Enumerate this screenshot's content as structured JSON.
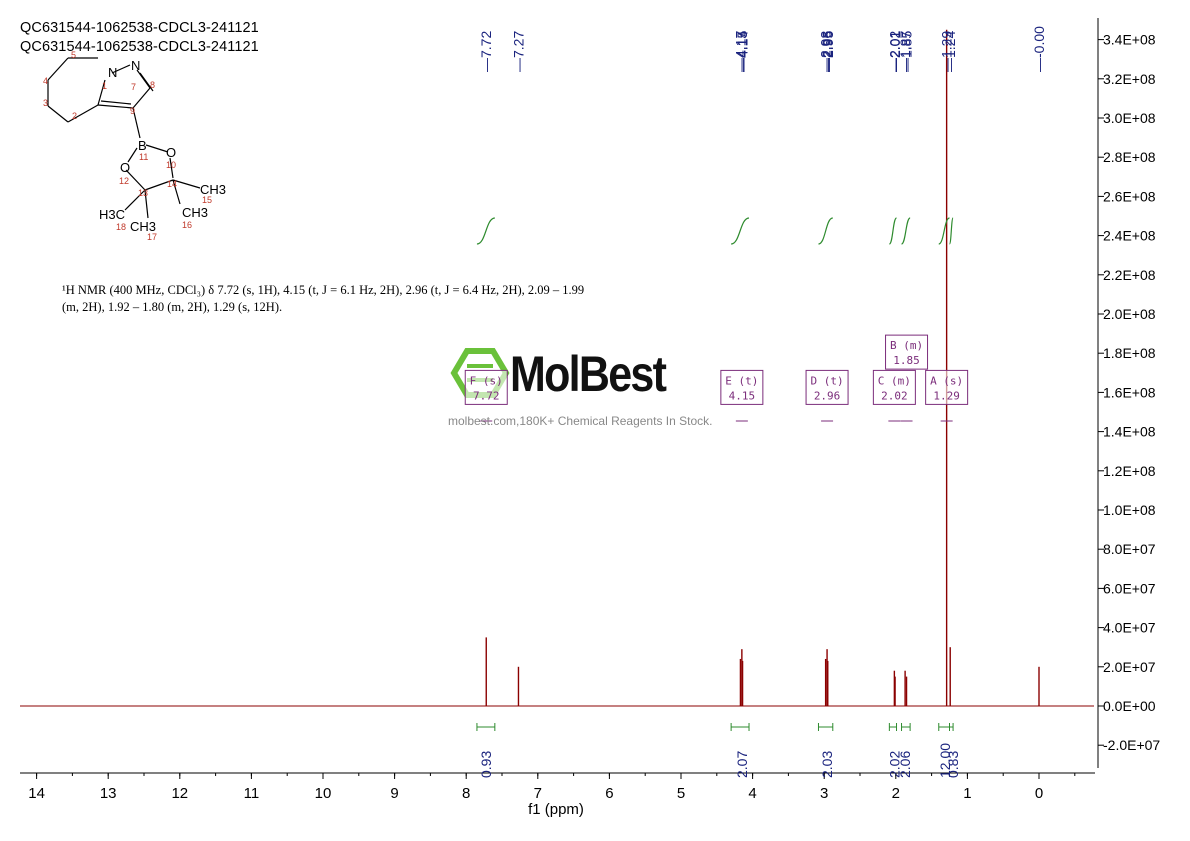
{
  "titles": [
    "QC631544-1062538-CDCL3-241121",
    "QC631544-1062538-CDCL3-241121"
  ],
  "nmr_description": {
    "line1": "¹H NMR (400 MHz, CDCl₃) δ 7.72 (s, 1H), 4.15 (t, J = 6.1 Hz, 2H), 2.96 (t, J = 6.4 Hz, 2H), 2.09 – 1.99",
    "line2": "(m, 2H), 1.92 – 1.80 (m, 2H), 1.29 (s, 12H)."
  },
  "watermark": {
    "logo_text": "MolBest",
    "subtitle": "molbest.com,180K+ Chemical Reagents In Stock."
  },
  "structure": {
    "atoms": [
      "N",
      "N",
      "B",
      "O",
      "O",
      "H3C",
      "CH3",
      "CH3",
      "CH3"
    ],
    "numbers": [
      "1",
      "2",
      "3",
      "4",
      "5",
      "6",
      "7",
      "8",
      "9",
      "10",
      "11",
      "12",
      "13",
      "14",
      "15",
      "16",
      "17",
      "18"
    ]
  },
  "colors": {
    "spectrum": "#8b0000",
    "integral": "#2e8b2e",
    "label_text": "#1a237e",
    "multiplet_box": "#7b2d7b"
  },
  "chart_data": {
    "type": "line",
    "xlabel": "f1 (ppm)",
    "x_ticks": [
      14,
      13,
      12,
      11,
      10,
      9,
      8,
      7,
      6,
      5,
      4,
      3,
      2,
      1,
      0
    ],
    "xlim": [
      14.3,
      -0.75
    ],
    "ylim": [
      -35000000.0,
      350000000.0
    ],
    "y_ticks": [
      "3.4E+08",
      "3.2E+08",
      "3.0E+08",
      "2.8E+08",
      "2.6E+08",
      "2.4E+08",
      "2.2E+08",
      "2.0E+08",
      "1.8E+08",
      "1.6E+08",
      "1.4E+08",
      "1.2E+08",
      "1.0E+08",
      "8.0E+07",
      "6.0E+07",
      "4.0E+07",
      "2.0E+07",
      "0.0E+00",
      "-2.0E+07"
    ],
    "y_tick_values": [
      340000000.0,
      320000000.0,
      300000000.0,
      280000000.0,
      260000000.0,
      240000000.0,
      220000000.0,
      200000000.0,
      180000000.0,
      160000000.0,
      140000000.0,
      120000000.0,
      100000000.0,
      80000000.0,
      60000000.0,
      40000000.0,
      20000000.0,
      0,
      -20000000.0
    ],
    "peak_labels": [
      "7.72",
      "7.27",
      "4.17",
      "4.15",
      "4.14",
      "2.98",
      "2.96",
      "2.95",
      "2.02",
      "2.01",
      "1.87",
      "1.85",
      "1.29",
      "1.24",
      "-0.00"
    ],
    "peak_label_values": [
      7.72,
      7.27,
      4.17,
      4.15,
      4.14,
      2.98,
      2.96,
      2.95,
      2.02,
      2.01,
      1.87,
      1.85,
      1.29,
      1.24,
      0.0
    ],
    "peaks": [
      {
        "ppm": 7.72,
        "height": 35000000.0
      },
      {
        "ppm": 7.27,
        "height": 20000000.0
      },
      {
        "ppm": 4.17,
        "height": 24000000.0
      },
      {
        "ppm": 4.15,
        "height": 29000000.0
      },
      {
        "ppm": 4.14,
        "height": 23000000.0
      },
      {
        "ppm": 2.98,
        "height": 24000000.0
      },
      {
        "ppm": 2.96,
        "height": 29000000.0
      },
      {
        "ppm": 2.95,
        "height": 23000000.0
      },
      {
        "ppm": 2.02,
        "height": 18000000.0
      },
      {
        "ppm": 2.01,
        "height": 15000000.0
      },
      {
        "ppm": 1.87,
        "height": 18000000.0
      },
      {
        "ppm": 1.85,
        "height": 15000000.0
      },
      {
        "ppm": 1.29,
        "height": 345000000.0
      },
      {
        "ppm": 1.24,
        "height": 30000000.0
      },
      {
        "ppm": 0.0,
        "height": 20000000.0
      }
    ],
    "integrals": [
      {
        "from": 7.85,
        "to": 7.6,
        "value": "0.93",
        "center": 7.72
      },
      {
        "from": 4.3,
        "to": 4.05,
        "value": "2.07",
        "center": 4.15
      },
      {
        "from": 3.08,
        "to": 2.88,
        "value": "2.03",
        "center": 2.96
      },
      {
        "from": 2.09,
        "to": 1.99,
        "value": "2.02",
        "center": 2.02
      },
      {
        "from": 1.92,
        "to": 1.8,
        "value": "2.06",
        "center": 1.87
      },
      {
        "from": 1.4,
        "to": 1.25,
        "value": "12.00",
        "center": 1.31
      },
      {
        "from": 1.25,
        "to": 1.2,
        "value": "0.83",
        "center": 1.2
      }
    ],
    "multiplets": [
      {
        "letter": "F",
        "type": "(s)",
        "shift": "7.72",
        "ppm": 7.72,
        "level": 160000000.0
      },
      {
        "letter": "E",
        "type": "(t)",
        "shift": "4.15",
        "ppm": 4.15,
        "level": 160000000.0
      },
      {
        "letter": "D",
        "type": "(t)",
        "shift": "2.96",
        "ppm": 2.96,
        "level": 160000000.0
      },
      {
        "letter": "C",
        "type": "(m)",
        "shift": "2.02",
        "ppm": 2.02,
        "level": 160000000.0
      },
      {
        "letter": "B",
        "type": "(m)",
        "shift": "1.85",
        "ppm": 1.85,
        "level": 178000000.0
      },
      {
        "letter": "A",
        "type": "(s)",
        "shift": "1.29",
        "ppm": 1.29,
        "level": 160000000.0
      }
    ]
  }
}
